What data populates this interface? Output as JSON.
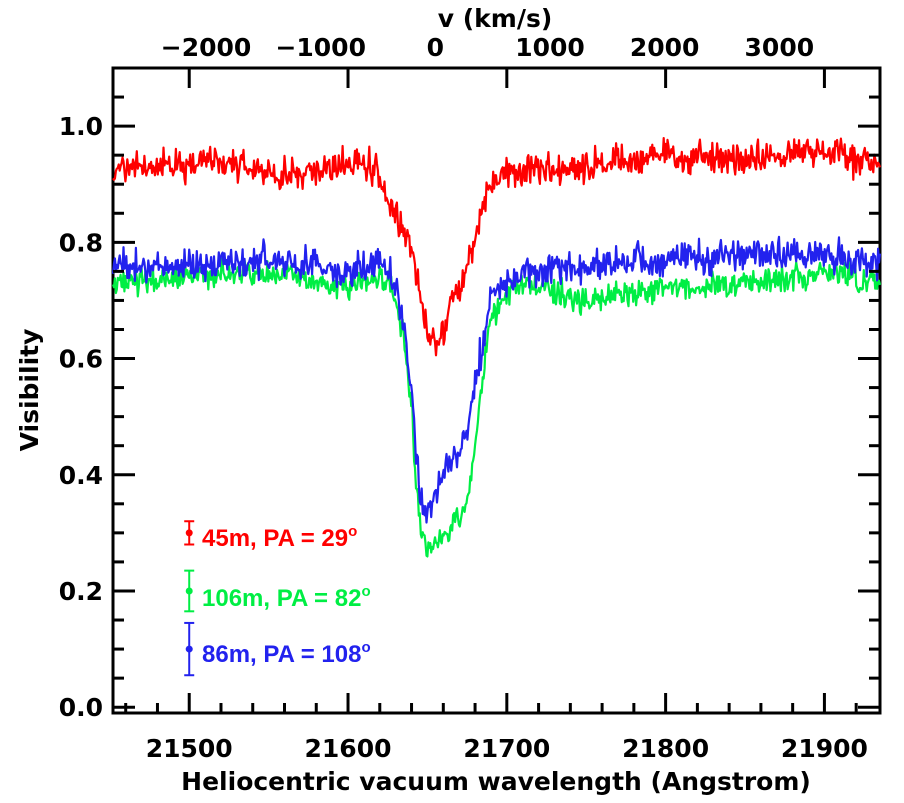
{
  "chart_data": {
    "type": "line",
    "xlabel": "Heliocentric vacuum wavelength (Angstrom)",
    "ylabel": "Visibility",
    "top_axis_label": "v (km/s)",
    "xlim": [
      21452,
      21935
    ],
    "ylim": [
      -0.01,
      1.1
    ],
    "x_ticks": [
      21500,
      21600,
      21700,
      21800,
      21900
    ],
    "x_tick_labels": [
      "21500",
      "21600",
      "21700",
      "21800",
      "21900"
    ],
    "y_ticks": [
      0.0,
      0.2,
      0.4,
      0.6,
      0.8,
      1.0
    ],
    "y_tick_labels": [
      "0.0",
      "0.2",
      "0.4",
      "0.6",
      "0.8",
      "1.0"
    ],
    "top_ticks": [
      -2000,
      -1000,
      0,
      1000,
      2000,
      3000
    ],
    "top_tick_labels": [
      "−2000",
      "−1000",
      "0",
      "1000",
      "2000",
      "3000"
    ],
    "top_axis_rest_wavelength": 21655,
    "top_axis_unit_per_angstrom": 13.85,
    "grid": false,
    "legend_position": "bottom-left",
    "series": [
      {
        "name": "45m, PA = 29",
        "label_main": "45m, PA = 29",
        "label_sup": "o",
        "color": "#ff0000",
        "x": [
          21452,
          21480,
          21520,
          21560,
          21600,
          21615,
          21622,
          21628,
          21634,
          21640,
          21645,
          21650,
          21655,
          21660,
          21665,
          21670,
          21675,
          21680,
          21685,
          21690,
          21700,
          21750,
          21800,
          21850,
          21900,
          21935
        ],
        "values": [
          0.93,
          0.93,
          0.94,
          0.91,
          0.94,
          0.93,
          0.9,
          0.86,
          0.82,
          0.78,
          0.71,
          0.65,
          0.63,
          0.65,
          0.7,
          0.72,
          0.76,
          0.8,
          0.86,
          0.9,
          0.92,
          0.93,
          0.95,
          0.94,
          0.96,
          0.93
        ],
        "noise": 0.025,
        "errorbar": {
          "x": 21500,
          "y": 0.3,
          "err": 0.02
        }
      },
      {
        "name": "106m, PA = 82",
        "label_main": "106m, PA = 82",
        "label_sup": "o",
        "color": "#00ee44",
        "x": [
          21452,
          21500,
          21550,
          21600,
          21620,
          21628,
          21635,
          21640,
          21643,
          21647,
          21651,
          21656,
          21662,
          21668,
          21674,
          21680,
          21690,
          21710,
          21750,
          21800,
          21850,
          21900,
          21935
        ],
        "values": [
          0.73,
          0.74,
          0.75,
          0.72,
          0.74,
          0.72,
          0.64,
          0.52,
          0.38,
          0.29,
          0.27,
          0.28,
          0.3,
          0.32,
          0.34,
          0.45,
          0.68,
          0.73,
          0.7,
          0.72,
          0.73,
          0.75,
          0.73
        ],
        "noise": 0.02,
        "errorbar": {
          "x": 21500,
          "y": 0.2,
          "err": 0.035
        }
      },
      {
        "name": "86m, PA = 108",
        "label_main": "86m, PA = 108",
        "label_sup": "o",
        "color": "#2222ee",
        "x": [
          21452,
          21500,
          21550,
          21600,
          21620,
          21628,
          21635,
          21640,
          21643,
          21647,
          21651,
          21656,
          21662,
          21668,
          21674,
          21680,
          21690,
          21710,
          21750,
          21800,
          21850,
          21900,
          21935
        ],
        "values": [
          0.76,
          0.76,
          0.77,
          0.75,
          0.77,
          0.74,
          0.66,
          0.55,
          0.43,
          0.34,
          0.33,
          0.37,
          0.42,
          0.44,
          0.47,
          0.55,
          0.71,
          0.75,
          0.76,
          0.77,
          0.78,
          0.78,
          0.76
        ],
        "noise": 0.025,
        "errorbar": {
          "x": 21500,
          "y": 0.1,
          "err": 0.045
        }
      }
    ]
  }
}
